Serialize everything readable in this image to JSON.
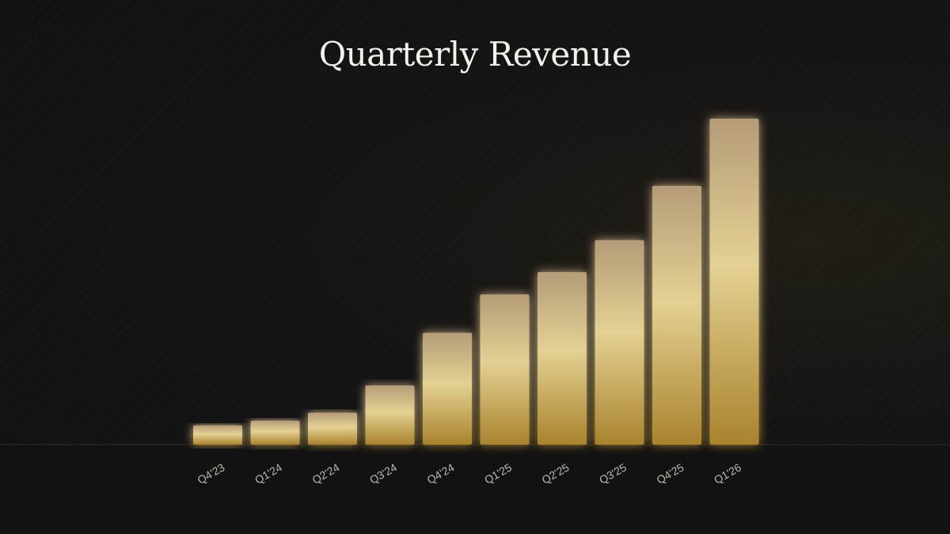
{
  "chart_data": {
    "type": "bar",
    "title": "Quarterly Revenue",
    "xlabel": "",
    "ylabel": "",
    "categories": [
      "Q4'23",
      "Q1'24",
      "Q2'24",
      "Q3'24",
      "Q4'24",
      "Q1'25",
      "Q2'25",
      "Q3'25",
      "Q4'25",
      "Q1'26"
    ],
    "values": [
      6,
      7.5,
      10,
      18.5,
      35,
      47,
      54,
      64,
      81,
      102
    ],
    "ylim": [
      0,
      102
    ],
    "grid": false,
    "legend": "none",
    "colors": {
      "bar_top": "#cdb791",
      "bar_mid": "#e3cf94",
      "bar_bottom": "#a8812c",
      "background": "#131313",
      "title": "#f4f1ea",
      "tick_label": "#bdb7ab"
    }
  }
}
